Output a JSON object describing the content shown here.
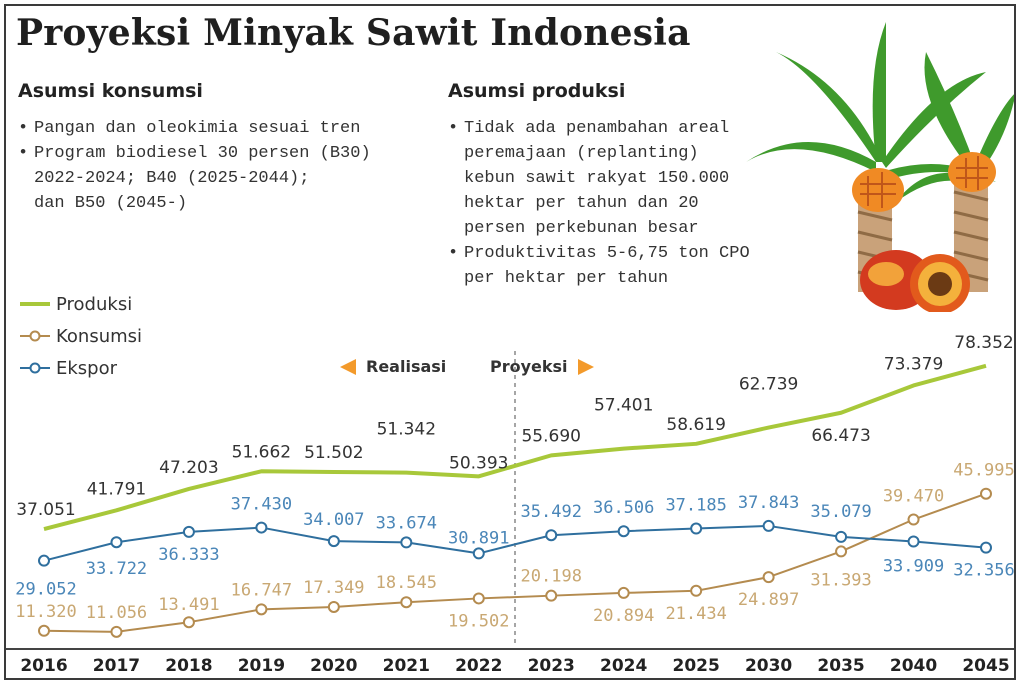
{
  "title": "Proyeksi Minyak Sawit Indonesia",
  "consumption": {
    "heading": "Asumsi konsumsi",
    "items": [
      "Pangan dan oleokimia sesuai tren",
      "Program biodiesel 30 persen (B30)\n2022-2024; B40 (2025-2044);\ndan B50 (2045-)"
    ]
  },
  "production": {
    "heading": "Asumsi produksi",
    "items": [
      "Tidak ada penambahan areal\nperemajaan (replanting)\nkebun sawit rakyat 150.000\nhektar per tahun dan 20\npersen perkebunan besar",
      "Produktivitas 5-6,75 ton CPO\nper hektar per tahun"
    ]
  },
  "phases": {
    "left": "Realisasi",
    "right": "Proyeksi"
  },
  "colors": {
    "produksi": "#a8c83a",
    "konsumsi": "#b48b4f",
    "ekspor": "#2f6f9e",
    "arrow": "#f39a2b",
    "label_produksi": "#333333",
    "label_konsumsi": "#c9a873",
    "label_ekspor": "#4a86b8"
  },
  "chart_data": {
    "type": "line",
    "categories": [
      "2016",
      "2017",
      "2018",
      "2019",
      "2020",
      "2021",
      "2022",
      "2023",
      "2024",
      "2025",
      "2030",
      "2035",
      "2040",
      "2045"
    ],
    "series": [
      {
        "name": "Produksi",
        "values": [
          37051,
          41791,
          47203,
          51662,
          51502,
          51342,
          50393,
          55690,
          57401,
          58619,
          62739,
          66473,
          73379,
          78352
        ],
        "labels": [
          "37.051",
          "41.791",
          "47.203",
          "51.662",
          "51.502",
          "51.342",
          "50.393",
          "55.690",
          "57.401",
          "58.619",
          "62.739",
          "66.473",
          "73.379",
          "78.352"
        ]
      },
      {
        "name": "Konsumsi",
        "values": [
          11320,
          11056,
          13491,
          16747,
          17349,
          18545,
          19502,
          20198,
          20894,
          21434,
          24897,
          31393,
          39470,
          45995
        ],
        "labels": [
          "11.320",
          "11.056",
          "13.491",
          "16.747",
          "17.349",
          "18.545",
          "19.502",
          "20.198",
          "20.894",
          "21.434",
          "24.897",
          "31.393",
          "39.470",
          "45.995"
        ]
      },
      {
        "name": "Ekspor",
        "values": [
          29052,
          33722,
          36333,
          37430,
          34007,
          33674,
          30891,
          35492,
          36506,
          37185,
          37843,
          35079,
          33909,
          32356
        ],
        "labels": [
          "29.052",
          "33.722",
          "36.333",
          "37.430",
          "34.007",
          "33.674",
          "30.891",
          "35.492",
          "36.506",
          "37.185",
          "37.843",
          "35.079",
          "33.909",
          "32.356"
        ]
      }
    ],
    "projection_start": "2023",
    "legend": "top-left",
    "grid": false
  }
}
